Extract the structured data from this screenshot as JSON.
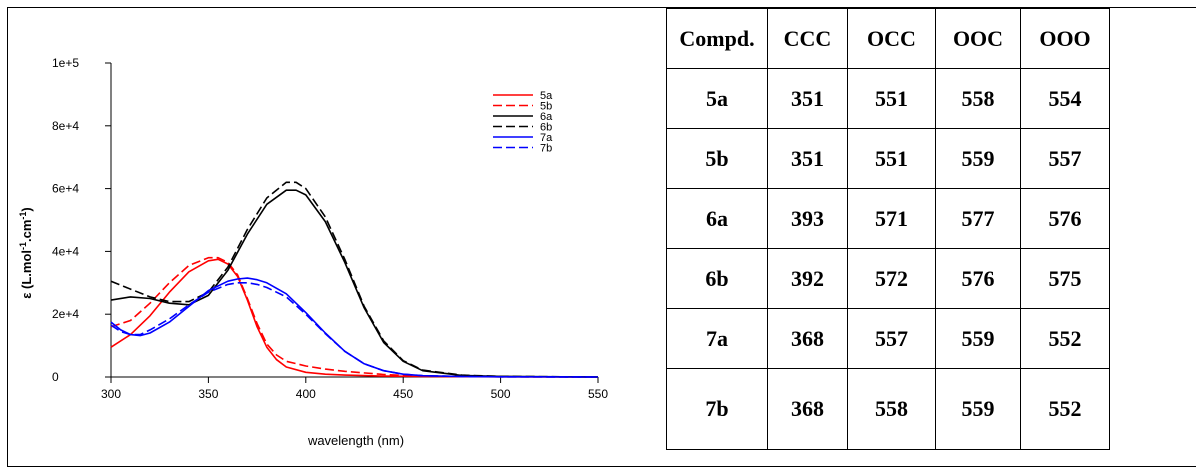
{
  "chart_data": {
    "type": "line",
    "xlabel": "wavelength (nm)",
    "ylabel": "ε (L.mol-1.cm-1)",
    "ylabel_parts": {
      "pre": "ε (L.mol",
      "sup1": "-1",
      "mid": ".cm",
      "sup2": "-1",
      "post": ")"
    },
    "xlim": [
      300,
      550
    ],
    "ylim": [
      0,
      100000
    ],
    "x_ticks": [
      300,
      350,
      400,
      450,
      500,
      550
    ],
    "y_ticks": [
      0,
      20000,
      40000,
      60000,
      80000,
      100000
    ],
    "y_tick_labels": [
      "0",
      "2e+4",
      "4e+4",
      "6e+4",
      "8e+4",
      "1e+5"
    ],
    "grid": false,
    "legend_position": "top-right",
    "series": [
      {
        "name": "5a",
        "color": "#ff0000",
        "dash": "solid",
        "x": [
          300,
          310,
          320,
          330,
          340,
          350,
          355,
          360,
          365,
          370,
          375,
          380,
          385,
          390,
          400,
          410,
          420,
          440,
          460,
          500,
          550
        ],
        "y": [
          9500,
          13500,
          19500,
          27000,
          33500,
          37000,
          37500,
          36000,
          32000,
          24500,
          16000,
          9500,
          5500,
          3200,
          1500,
          900,
          600,
          300,
          150,
          50,
          0
        ]
      },
      {
        "name": "5b",
        "color": "#ff0000",
        "dash": "dashed",
        "x": [
          300,
          310,
          320,
          330,
          340,
          350,
          355,
          360,
          365,
          370,
          375,
          380,
          385,
          390,
          400,
          410,
          420,
          440,
          460,
          500,
          550
        ],
        "y": [
          16000,
          18000,
          23500,
          30000,
          35500,
          38000,
          38000,
          36500,
          32500,
          25000,
          17000,
          10500,
          7000,
          5000,
          3500,
          2500,
          1800,
          800,
          300,
          100,
          0
        ]
      },
      {
        "name": "6a",
        "color": "#000000",
        "dash": "solid",
        "x": [
          300,
          310,
          320,
          330,
          340,
          350,
          360,
          370,
          380,
          390,
          395,
          400,
          410,
          420,
          430,
          440,
          450,
          460,
          480,
          500,
          550
        ],
        "y": [
          24500,
          25500,
          25000,
          23500,
          23000,
          26000,
          34000,
          45500,
          55000,
          59500,
          59500,
          58000,
          49500,
          36500,
          22000,
          11000,
          5000,
          2000,
          500,
          200,
          0
        ]
      },
      {
        "name": "6b",
        "color": "#000000",
        "dash": "dashed",
        "x": [
          300,
          310,
          320,
          330,
          340,
          350,
          360,
          370,
          380,
          390,
          395,
          400,
          410,
          420,
          430,
          440,
          450,
          460,
          480,
          500,
          550
        ],
        "y": [
          30500,
          28000,
          25500,
          24000,
          24000,
          27000,
          35000,
          47000,
          57000,
          62000,
          62000,
          60000,
          51000,
          37500,
          22500,
          11500,
          5200,
          2200,
          600,
          200,
          0
        ]
      },
      {
        "name": "7a",
        "color": "#0000ff",
        "dash": "solid",
        "x": [
          300,
          305,
          310,
          315,
          320,
          330,
          340,
          350,
          360,
          365,
          370,
          375,
          380,
          390,
          400,
          410,
          420,
          430,
          440,
          450,
          460,
          480,
          500,
          550
        ],
        "y": [
          17500,
          15000,
          13500,
          13200,
          14000,
          17500,
          22500,
          27500,
          30500,
          31200,
          31500,
          31000,
          30000,
          26500,
          20500,
          14000,
          8200,
          4200,
          2000,
          900,
          400,
          150,
          50,
          0
        ]
      },
      {
        "name": "7b",
        "color": "#0000ff",
        "dash": "dashed",
        "x": [
          300,
          305,
          310,
          315,
          320,
          330,
          340,
          350,
          360,
          365,
          370,
          375,
          380,
          390,
          400,
          410,
          420,
          430,
          440,
          450,
          460,
          480,
          500,
          550
        ],
        "y": [
          16500,
          14500,
          13500,
          13500,
          15000,
          18500,
          23000,
          27000,
          29500,
          30000,
          30000,
          29500,
          28500,
          25500,
          20000,
          13800,
          8200,
          4200,
          2000,
          900,
          400,
          150,
          50,
          0
        ]
      }
    ]
  },
  "table": {
    "headers": [
      "Compd.",
      "CCC",
      "OCC",
      "OOC",
      "OOO"
    ],
    "rows": [
      [
        "5a",
        "351",
        "551",
        "558",
        "554"
      ],
      [
        "5b",
        "351",
        "551",
        "559",
        "557"
      ],
      [
        "6a",
        "393",
        "571",
        "577",
        "576"
      ],
      [
        "6b",
        "392",
        "572",
        "576",
        "575"
      ],
      [
        "7a",
        "368",
        "557",
        "559",
        "552"
      ],
      [
        "7b",
        "368",
        "558",
        "559",
        "552"
      ]
    ]
  }
}
